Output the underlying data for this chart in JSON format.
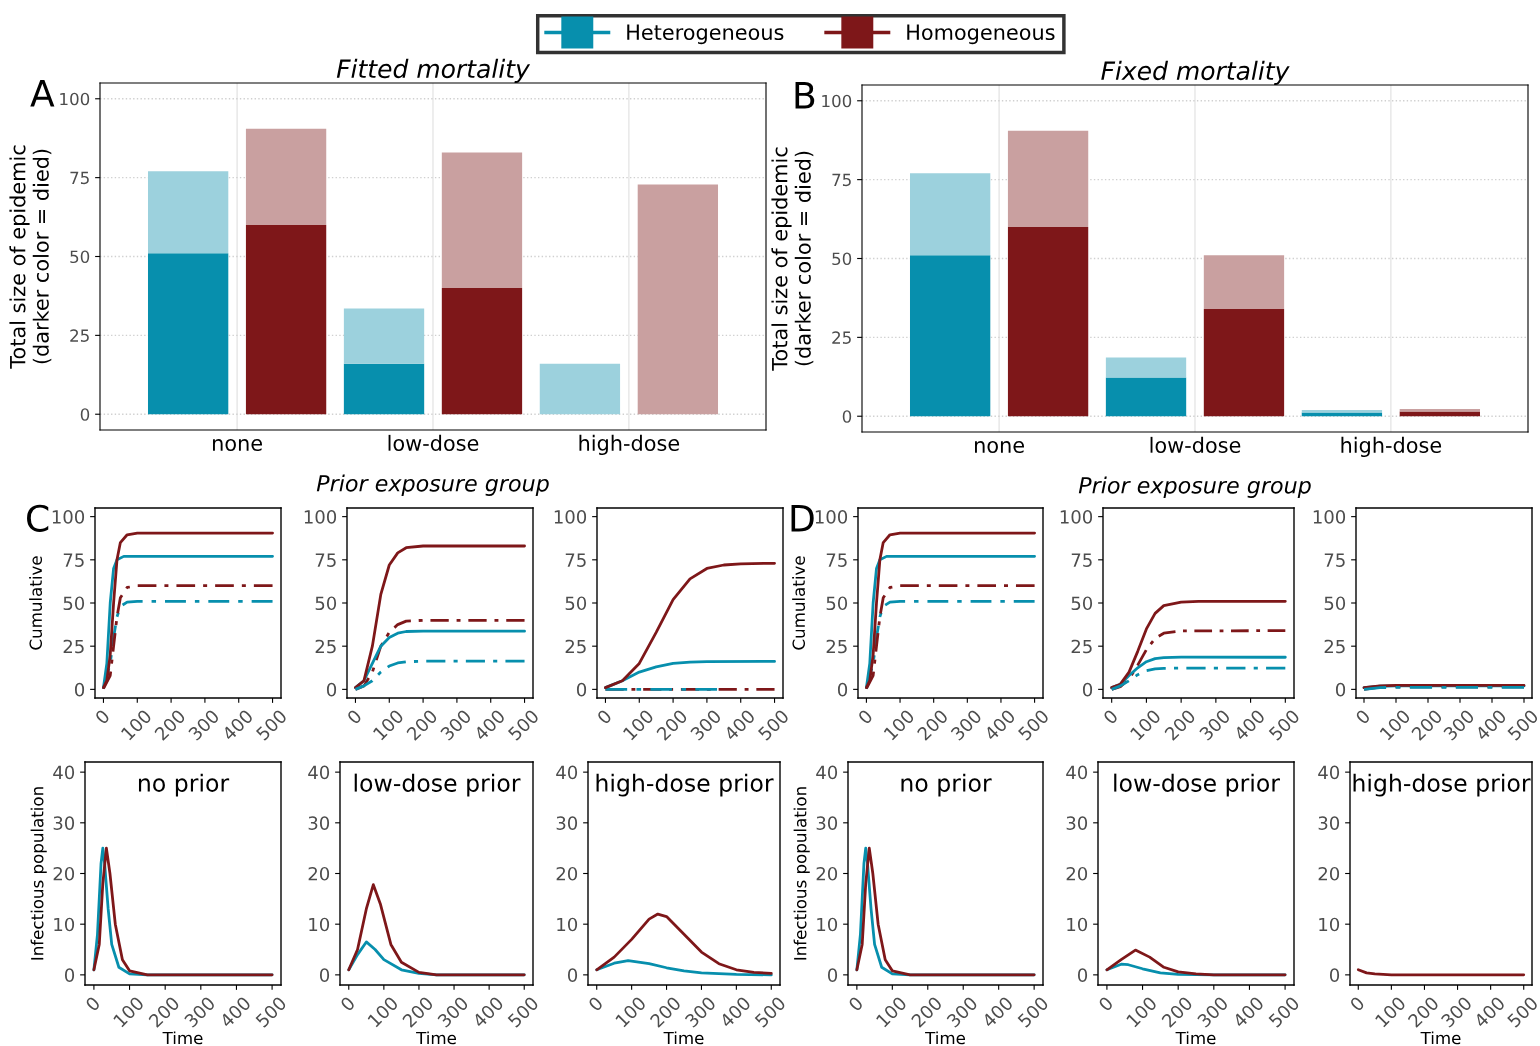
{
  "chart_data": [
    {
      "type": "bar",
      "title": "Fitted mortality",
      "xlabel": "Prior exposure group",
      "ylabel": "Total size of epidemic\n(darker color = died)",
      "categories": [
        "none",
        null,
        "low-dose",
        null,
        "high-dose",
        null
      ],
      "stacked": true,
      "ylim": [
        -5,
        105
      ],
      "yticks": [
        0,
        25,
        50,
        75,
        100
      ],
      "grid": true,
      "legend": "top",
      "annotations": [
        "A"
      ],
      "series": [
        {
          "name": "Heterogeneous",
          "color": "#078fad",
          "values": [
            51,
            null,
            16,
            null,
            0,
            null
          ]
        },
        {
          "color": "#9cd1dd",
          "values": [
            26,
            null,
            17.5,
            null,
            16,
            null
          ]
        },
        {
          "name": "Homogeneous",
          "color": "#7e1719",
          "values": [
            null,
            60,
            null,
            40,
            null,
            0
          ]
        },
        {
          "color": "#c9a0a0",
          "values": [
            null,
            30.5,
            null,
            43,
            null,
            72.8
          ]
        }
      ]
    },
    {
      "type": "bar",
      "title": "Fixed mortality",
      "xlabel": "Prior exposure group",
      "ylabel": "Total size of epidemic\n(darker color = died)",
      "categories": [
        "none",
        null,
        "low-dose",
        null,
        "high-dose",
        null
      ],
      "stacked": true,
      "ylim": [
        -5,
        105
      ],
      "yticks": [
        0,
        25,
        50,
        75,
        100
      ],
      "grid": true,
      "annotations": [
        "B"
      ],
      "series": [
        {
          "color": "#078fad",
          "values": [
            51,
            null,
            12.3,
            null,
            1.2,
            null
          ]
        },
        {
          "color": "#9cd1dd",
          "values": [
            26,
            null,
            6.3,
            null,
            0.8,
            null
          ]
        },
        {
          "color": "#7e1719",
          "values": [
            null,
            60,
            null,
            34,
            null,
            1.5
          ]
        },
        {
          "color": "#c9a0a0",
          "values": [
            null,
            30.5,
            null,
            17,
            null,
            0.8
          ]
        }
      ]
    },
    {
      "type": "line",
      "ylabel": "Cumulative",
      "xlim": [
        -25,
        525
      ],
      "xticks": [
        0,
        100,
        200,
        300,
        400,
        500
      ],
      "ylim": [
        -5,
        105
      ],
      "yticks": [
        0,
        25,
        50,
        75,
        100
      ],
      "annotations": [
        "C"
      ],
      "series": [
        {
          "color": "#078fad",
          "line_style": "dashed",
          "x": [
            0,
            20,
            30,
            40,
            50,
            70,
            100,
            500
          ],
          "values": [
            0.5,
            15,
            30,
            42,
            48,
            50.5,
            51,
            51
          ]
        },
        {
          "color": "#7e1719",
          "line_style": "dashed",
          "x": [
            0,
            20,
            30,
            40,
            50,
            70,
            100,
            500
          ],
          "values": [
            0.5,
            8,
            25,
            42,
            53,
            59,
            60,
            60
          ]
        },
        {
          "color": "#078fad",
          "line_style": "solid",
          "x": [
            0,
            10,
            20,
            30,
            40,
            60,
            100,
            500
          ],
          "values": [
            1,
            15,
            50,
            70,
            75,
            77,
            77,
            77
          ]
        },
        {
          "color": "#7e1719",
          "line_style": "solid",
          "x": [
            0,
            10,
            20,
            30,
            40,
            50,
            70,
            100,
            500
          ],
          "values": [
            1,
            5,
            20,
            50,
            75,
            85,
            89.5,
            90.5,
            90.5
          ]
        }
      ]
    },
    {
      "type": "line",
      "xlim": [
        -25,
        525
      ],
      "xticks": [
        0,
        100,
        200,
        300,
        400,
        500
      ],
      "ylim": [
        -5,
        105
      ],
      "yticks": [
        0,
        25,
        50,
        75,
        100
      ],
      "series": [
        {
          "color": "#7e1719",
          "line_style": "dashed",
          "x": [
            0,
            25,
            50,
            75,
            100,
            125,
            150,
            200,
            500
          ],
          "values": [
            0,
            2,
            10,
            25,
            33,
            37.5,
            39.5,
            40,
            40
          ]
        },
        {
          "color": "#078fad",
          "line_style": "solid",
          "x": [
            0,
            25,
            50,
            75,
            100,
            125,
            150,
            200,
            500
          ],
          "values": [
            1,
            5,
            15,
            25,
            30,
            32.5,
            33.5,
            33.7,
            33.7
          ]
        },
        {
          "color": "#7e1719",
          "line_style": "solid",
          "x": [
            0,
            25,
            50,
            75,
            100,
            125,
            150,
            200,
            500
          ],
          "values": [
            1,
            5,
            25,
            55,
            72,
            79,
            82,
            83,
            83
          ]
        },
        {
          "color": "#078fad",
          "line_style": "dashed",
          "x": [
            0,
            25,
            50,
            75,
            100,
            125,
            150,
            200,
            500
          ],
          "values": [
            0,
            2,
            5,
            10,
            13.5,
            15.3,
            16,
            16.3,
            16.3
          ]
        }
      ]
    },
    {
      "type": "line",
      "xlim": [
        -25,
        525
      ],
      "xticks": [
        0,
        100,
        200,
        300,
        400,
        500
      ],
      "ylim": [
        -5,
        105
      ],
      "yticks": [
        0,
        25,
        50,
        75,
        100
      ],
      "series": [
        {
          "color": "#7e1719",
          "line_style": "dashed",
          "x": [
            0,
            500
          ],
          "values": [
            0,
            0
          ]
        },
        {
          "color": "#078fad",
          "line_style": "dashed",
          "x": [
            0,
            330
          ],
          "values": [
            0,
            0
          ]
        },
        {
          "color": "#078fad",
          "line_style": "solid",
          "x": [
            0,
            50,
            100,
            150,
            200,
            250,
            300,
            500
          ],
          "values": [
            1,
            5,
            10,
            13,
            15,
            15.8,
            16,
            16.2
          ]
        },
        {
          "color": "#7e1719",
          "line_style": "solid",
          "x": [
            0,
            50,
            100,
            150,
            200,
            250,
            300,
            350,
            400,
            500
          ],
          "values": [
            1,
            5,
            15,
            33,
            52,
            64,
            70,
            72,
            72.7,
            73
          ]
        }
      ]
    },
    {
      "type": "line",
      "ylabel": "Cumulative",
      "xlim": [
        -25,
        525
      ],
      "xticks": [
        0,
        100,
        200,
        300,
        400,
        500
      ],
      "ylim": [
        -5,
        105
      ],
      "yticks": [
        0,
        25,
        50,
        75,
        100
      ],
      "annotations": [
        "D"
      ],
      "series": [
        {
          "color": "#078fad",
          "line_style": "dashed",
          "x": [
            0,
            20,
            30,
            40,
            50,
            70,
            100,
            500
          ],
          "values": [
            0.5,
            15,
            30,
            42,
            48,
            50.5,
            51,
            51
          ]
        },
        {
          "color": "#7e1719",
          "line_style": "dashed",
          "x": [
            0,
            20,
            30,
            40,
            50,
            70,
            100,
            500
          ],
          "values": [
            0.5,
            8,
            25,
            42,
            53,
            59,
            60,
            60
          ]
        },
        {
          "color": "#078fad",
          "line_style": "solid",
          "x": [
            0,
            10,
            20,
            30,
            40,
            60,
            100,
            500
          ],
          "values": [
            1,
            15,
            50,
            70,
            75,
            77,
            77,
            77
          ]
        },
        {
          "color": "#7e1719",
          "line_style": "solid",
          "x": [
            0,
            10,
            20,
            30,
            40,
            50,
            70,
            100,
            500
          ],
          "values": [
            1,
            5,
            20,
            50,
            75,
            85,
            89.5,
            90.5,
            90.5
          ]
        }
      ]
    },
    {
      "type": "line",
      "xlim": [
        -25,
        525
      ],
      "xticks": [
        0,
        100,
        200,
        300,
        400,
        500
      ],
      "ylim": [
        -5,
        105
      ],
      "yticks": [
        0,
        25,
        50,
        75,
        100
      ],
      "series": [
        {
          "color": "#7e1719",
          "line_style": "dashed",
          "x": [
            0,
            25,
            50,
            75,
            100,
            125,
            150,
            200,
            500
          ],
          "values": [
            0,
            1.5,
            6,
            14,
            23,
            29.5,
            32.5,
            33.8,
            34
          ]
        },
        {
          "color": "#078fad",
          "line_style": "solid",
          "x": [
            0,
            25,
            50,
            75,
            100,
            125,
            150,
            200,
            500
          ],
          "values": [
            1,
            3,
            8,
            12.5,
            16,
            17.8,
            18.4,
            18.6,
            18.6
          ]
        },
        {
          "color": "#7e1719",
          "line_style": "solid",
          "x": [
            0,
            25,
            50,
            75,
            100,
            125,
            150,
            200,
            250,
            500
          ],
          "values": [
            1,
            3,
            10,
            22,
            35,
            44,
            48.5,
            50.5,
            51,
            51
          ]
        },
        {
          "color": "#078fad",
          "line_style": "dashed",
          "x": [
            0,
            25,
            50,
            75,
            100,
            125,
            150,
            200,
            500
          ],
          "values": [
            0,
            2,
            5,
            8.5,
            10.8,
            11.8,
            12.2,
            12.3,
            12.3
          ]
        }
      ]
    },
    {
      "type": "line",
      "xlim": [
        -25,
        525
      ],
      "xticks": [
        0,
        100,
        200,
        300,
        400,
        500
      ],
      "ylim": [
        -5,
        105
      ],
      "yticks": [
        0,
        25,
        50,
        75,
        100
      ],
      "series": [
        {
          "color": "#078fad",
          "line_style": "solid",
          "x": [
            0,
            50,
            100,
            500
          ],
          "values": [
            1,
            1.8,
            2,
            2
          ]
        },
        {
          "color": "#7e1719",
          "line_style": "solid",
          "x": [
            0,
            50,
            100,
            500
          ],
          "values": [
            1,
            2,
            2.3,
            2.3
          ]
        },
        {
          "color": "#7e1719",
          "line_style": "dashed",
          "x": [
            0,
            50,
            100,
            500
          ],
          "values": [
            0,
            1.3,
            1.5,
            1.5
          ]
        },
        {
          "color": "#078fad",
          "line_style": "dashed",
          "x": [
            0,
            50,
            100,
            500
          ],
          "values": [
            0,
            1,
            1.2,
            1.2
          ]
        }
      ]
    },
    {
      "type": "line",
      "title": "no prior",
      "xlabel": "Time",
      "ylabel": "Infectious population",
      "xlim": [
        -25,
        525
      ],
      "xticks": [
        0,
        100,
        200,
        300,
        400,
        500
      ],
      "ylim": [
        -2,
        42
      ],
      "yticks": [
        0,
        10,
        20,
        30,
        40
      ],
      "series": [
        {
          "color": "#078fad",
          "x": [
            0,
            10,
            20,
            25,
            30,
            40,
            50,
            70,
            100,
            150,
            500
          ],
          "values": [
            1,
            8,
            22,
            25,
            22,
            13,
            6,
            1.5,
            0.2,
            0,
            0
          ]
        },
        {
          "color": "#7e1719",
          "x": [
            0,
            15,
            25,
            35,
            45,
            60,
            80,
            100,
            150,
            500
          ],
          "values": [
            1,
            6,
            18,
            25,
            20,
            10,
            3,
            0.8,
            0,
            0
          ]
        }
      ]
    },
    {
      "type": "line",
      "title": "low-dose prior",
      "xlabel": "Time",
      "xlim": [
        -25,
        525
      ],
      "xticks": [
        0,
        100,
        200,
        300,
        400,
        500
      ],
      "ylim": [
        -2,
        42
      ],
      "yticks": [
        0,
        10,
        20,
        30,
        40
      ],
      "series": [
        {
          "color": "#078fad",
          "x": [
            0,
            25,
            50,
            75,
            100,
            150,
            200,
            250,
            500
          ],
          "values": [
            1,
            4,
            6.5,
            5,
            3,
            1,
            0.3,
            0,
            0
          ]
        },
        {
          "color": "#7e1719",
          "x": [
            0,
            25,
            50,
            70,
            90,
            120,
            150,
            200,
            250,
            500
          ],
          "values": [
            1,
            5,
            13,
            17.8,
            14,
            6,
            2.5,
            0.5,
            0,
            0
          ]
        }
      ]
    },
    {
      "type": "line",
      "title": "high-dose prior",
      "xlabel": "Time",
      "xlim": [
        -25,
        525
      ],
      "xticks": [
        0,
        100,
        200,
        300,
        400,
        500
      ],
      "ylim": [
        -2,
        42
      ],
      "yticks": [
        0,
        10,
        20,
        30,
        40
      ],
      "series": [
        {
          "color": "#078fad",
          "x": [
            0,
            50,
            90,
            150,
            200,
            250,
            300,
            400,
            500
          ],
          "values": [
            1,
            2.3,
            2.8,
            2.2,
            1.4,
            0.8,
            0.4,
            0.1,
            0
          ]
        },
        {
          "color": "#7e1719",
          "x": [
            0,
            50,
            100,
            150,
            175,
            200,
            250,
            300,
            350,
            400,
            450,
            500
          ],
          "values": [
            1,
            3.5,
            7,
            11,
            12,
            11.5,
            8,
            4.5,
            2.2,
            1,
            0.5,
            0.3
          ]
        }
      ]
    },
    {
      "type": "line",
      "title": "no prior",
      "xlabel": "Time",
      "ylabel": "Infectious population",
      "xlim": [
        -25,
        525
      ],
      "xticks": [
        0,
        100,
        200,
        300,
        400,
        500
      ],
      "ylim": [
        -2,
        42
      ],
      "yticks": [
        0,
        10,
        20,
        30,
        40
      ],
      "series": [
        {
          "color": "#078fad",
          "x": [
            0,
            10,
            20,
            25,
            30,
            40,
            50,
            70,
            100,
            150,
            500
          ],
          "values": [
            1,
            8,
            22,
            25,
            22,
            13,
            6,
            1.5,
            0.2,
            0,
            0
          ]
        },
        {
          "color": "#7e1719",
          "x": [
            0,
            15,
            25,
            35,
            45,
            60,
            80,
            100,
            150,
            500
          ],
          "values": [
            1,
            6,
            18,
            25,
            20,
            10,
            3,
            0.8,
            0,
            0
          ]
        }
      ]
    },
    {
      "type": "line",
      "title": "low-dose prior",
      "xlabel": "Time",
      "xlim": [
        -25,
        525
      ],
      "xticks": [
        0,
        100,
        200,
        300,
        400,
        500
      ],
      "ylim": [
        -2,
        42
      ],
      "yticks": [
        0,
        10,
        20,
        30,
        40
      ],
      "series": [
        {
          "color": "#078fad",
          "x": [
            0,
            40,
            60,
            100,
            150,
            200,
            300,
            500
          ],
          "values": [
            1,
            2.1,
            2,
            1.2,
            0.4,
            0.1,
            0,
            0
          ]
        },
        {
          "color": "#7e1719",
          "x": [
            0,
            40,
            80,
            120,
            160,
            200,
            250,
            300,
            500
          ],
          "values": [
            1,
            3,
            4.9,
            3.5,
            1.5,
            0.6,
            0.2,
            0,
            0
          ]
        }
      ]
    },
    {
      "type": "line",
      "title": "high-dose prior",
      "xlabel": "Time",
      "xlim": [
        -25,
        525
      ],
      "xticks": [
        0,
        100,
        200,
        300,
        400,
        500
      ],
      "ylim": [
        -2,
        42
      ],
      "yticks": [
        0,
        10,
        20,
        30,
        40
      ],
      "series": [
        {
          "color": "#7e1719",
          "x": [
            0,
            25,
            50,
            100,
            500
          ],
          "values": [
            1,
            0.4,
            0.2,
            0,
            0
          ]
        }
      ]
    }
  ]
}
